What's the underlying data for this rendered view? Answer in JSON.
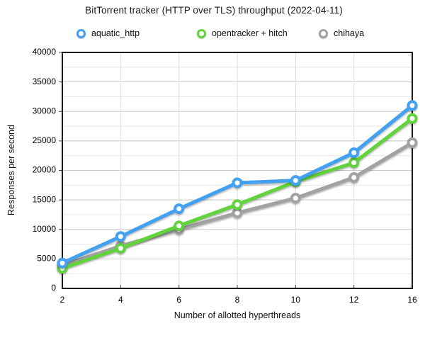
{
  "chart_data": {
    "type": "line",
    "title": "BitTorrent tracker (HTTP over TLS) throughput (2022-04-11)",
    "xlabel": "Number of allotted hyperthreads",
    "ylabel": "Responses per second",
    "categories": [
      2,
      4,
      6,
      8,
      10,
      12,
      16
    ],
    "x_tick_labels": [
      "2",
      "4",
      "6",
      "8",
      "10",
      "12",
      "16"
    ],
    "y_tick_labels": [
      "0",
      "5000",
      "10000",
      "15000",
      "20000",
      "25000",
      "30000",
      "35000",
      "40000"
    ],
    "ylim": [
      0,
      40000
    ],
    "y_major_step": 5000,
    "y_minor_step": 2500,
    "grid": true,
    "legend_position": "top",
    "series": [
      {
        "name": "aquatic_http",
        "color": "#42A1F1",
        "values": [
          4300,
          8800,
          13500,
          17900,
          18300,
          23000,
          31000
        ]
      },
      {
        "name": "opentracker + hitch",
        "color": "#62D33C",
        "values": [
          3400,
          6800,
          10600,
          14200,
          18100,
          21300,
          28800
        ]
      },
      {
        "name": "chihaya",
        "color": "#A2A2A2",
        "values": [
          3900,
          7200,
          10000,
          12800,
          15300,
          18800,
          24700
        ]
      }
    ]
  },
  "style": {
    "plot_border_color": "#1c1c1c",
    "major_grid_color": "#c7c7c7",
    "minor_grid_color": "#e8e8e8",
    "vertical_grid_color": "#dedede",
    "tick_color": "#444444",
    "marker_fill": "#ffffff"
  }
}
